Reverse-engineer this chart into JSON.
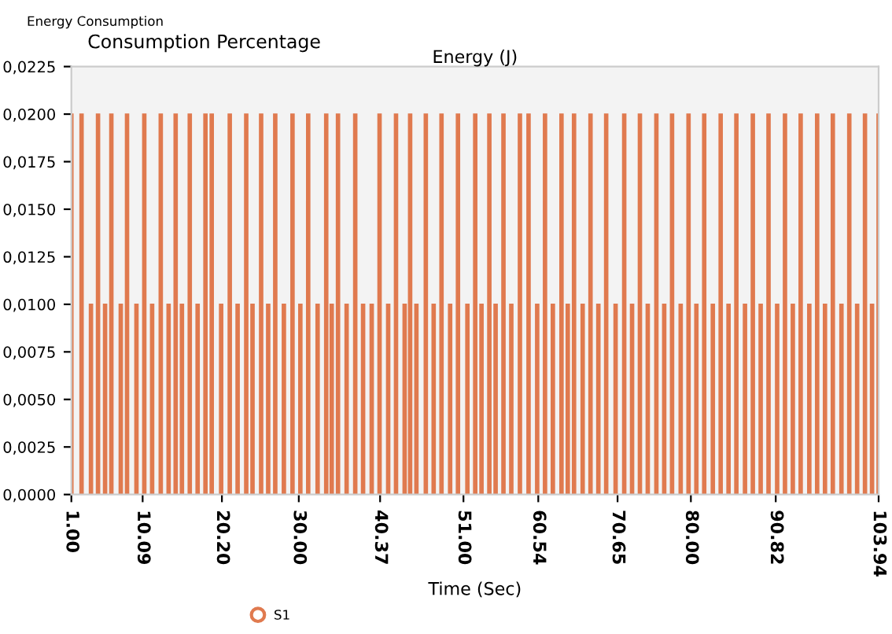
{
  "chart_data": {
    "type": "bar",
    "title": "Consumption Percentage",
    "subtitle": "Energy (J)",
    "xlabel": "Time (Sec)",
    "annotations": [
      "Energy Consumption"
    ],
    "x": [
      1,
      2.3,
      3.5,
      4.4,
      5.3,
      6.1,
      7.3,
      8.1,
      9.3,
      10.3,
      11.3,
      12.4,
      13.4,
      14.3,
      15.1,
      16.1,
      17.1,
      18.1,
      18.9,
      20.1,
      21.2,
      22.2,
      23.3,
      24.1,
      25.2,
      26.1,
      27.0,
      28.1,
      29.2,
      30.2,
      31.2,
      32.4,
      33.5,
      34.2,
      35.0,
      36.1,
      37.2,
      38.2,
      39.3,
      40.3,
      41.4,
      42.4,
      43.5,
      44.2,
      45.0,
      46.2,
      47.2,
      48.2,
      49.3,
      50.3,
      51.5,
      52.5,
      53.3,
      54.3,
      55.1,
      56.1,
      57.1,
      58.2,
      59.3,
      60.4,
      61.4,
      62.4,
      63.5,
      64.3,
      65.1,
      66.2,
      67.2,
      68.2,
      69.2,
      70.4,
      71.5,
      72.5,
      73.5,
      74.5,
      75.6,
      76.6,
      77.6,
      78.7,
      79.7,
      80.7,
      81.7,
      82.8,
      83.8,
      84.8,
      85.8,
      86.9,
      87.9,
      88.9,
      89.9,
      91.0,
      92.0,
      93.0,
      94.0,
      95.1,
      96.1,
      97.1,
      98.1,
      99.2,
      100.2,
      101.2,
      102.2,
      103.1,
      103.94
    ],
    "series": [
      {
        "name": "S1",
        "color": "#e07a4f",
        "values": [
          0.02,
          0.02,
          0.01,
          0.02,
          0.01,
          0.02,
          0.01,
          0.02,
          0.01,
          0.02,
          0.01,
          0.02,
          0.01,
          0.02,
          0.01,
          0.02,
          0.01,
          0.02,
          0.02,
          0.01,
          0.02,
          0.01,
          0.02,
          0.01,
          0.02,
          0.01,
          0.02,
          0.01,
          0.02,
          0.01,
          0.02,
          0.01,
          0.02,
          0.01,
          0.02,
          0.01,
          0.02,
          0.01,
          0.01,
          0.02,
          0.01,
          0.02,
          0.01,
          0.02,
          0.01,
          0.02,
          0.01,
          0.02,
          0.01,
          0.02,
          0.01,
          0.02,
          0.01,
          0.02,
          0.01,
          0.02,
          0.01,
          0.02,
          0.02,
          0.01,
          0.02,
          0.01,
          0.02,
          0.01,
          0.02,
          0.01,
          0.02,
          0.01,
          0.02,
          0.01,
          0.02,
          0.01,
          0.02,
          0.01,
          0.02,
          0.01,
          0.02,
          0.01,
          0.02,
          0.01,
          0.02,
          0.01,
          0.02,
          0.01,
          0.02,
          0.01,
          0.02,
          0.01,
          0.02,
          0.01,
          0.02,
          0.01,
          0.02,
          0.01,
          0.02,
          0.01,
          0.02,
          0.01,
          0.02,
          0.01,
          0.02,
          0.01,
          0.02
        ]
      }
    ],
    "xlim": [
      1,
      103.94
    ],
    "xticks": [
      {
        "value": 1,
        "label": "1.00"
      },
      {
        "value": 10.09,
        "label": "10.09"
      },
      {
        "value": 20.2,
        "label": "20.20"
      },
      {
        "value": 30,
        "label": "30.00"
      },
      {
        "value": 40.37,
        "label": "40.37"
      },
      {
        "value": 51,
        "label": "51.00"
      },
      {
        "value": 60.54,
        "label": "60.54"
      },
      {
        "value": 70.65,
        "label": "70.65"
      },
      {
        "value": 80,
        "label": "80.00"
      },
      {
        "value": 90.82,
        "label": "90.82"
      },
      {
        "value": 103.94,
        "label": "103.94"
      }
    ],
    "ylim": [
      0,
      0.0225
    ],
    "yticks": [
      {
        "value": 0,
        "label": "0,0000"
      },
      {
        "value": 0.0025,
        "label": "0,0025"
      },
      {
        "value": 0.005,
        "label": "0,0050"
      },
      {
        "value": 0.0075,
        "label": "0,0075"
      },
      {
        "value": 0.01,
        "label": "0,0100"
      },
      {
        "value": 0.0125,
        "label": "0,0125"
      },
      {
        "value": 0.015,
        "label": "0,0150"
      },
      {
        "value": 0.0175,
        "label": "0,0175"
      },
      {
        "value": 0.02,
        "label": "0,0200"
      },
      {
        "value": 0.0225,
        "label": "0,0225"
      }
    ],
    "grid": false,
    "legend": "bottom"
  }
}
